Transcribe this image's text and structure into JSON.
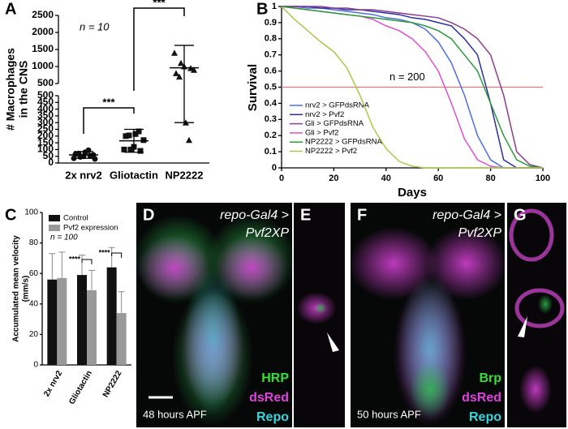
{
  "chart_data": [
    {
      "type": "dotplot",
      "panel": "A",
      "ylabel": [
        "# Macrophages",
        "in the CNS"
      ],
      "annotation": "n = 10",
      "categories": [
        "2x nrv2",
        "Gliotactin",
        "NP2222"
      ],
      "markers": [
        "circle",
        "square",
        "triangle"
      ],
      "color": "#111111",
      "groups": [
        [
          35,
          45,
          50,
          55,
          60,
          65,
          70,
          80,
          95,
          30
        ],
        [
          100,
          100,
          120,
          90,
          170,
          200,
          205,
          215,
          235
        ],
        [
          1400,
          1100,
          1000,
          950,
          900,
          800,
          700,
          300,
          170
        ]
      ],
      "means": [
        60,
        165,
        960
      ],
      "sd": [
        25,
        85,
        660
      ],
      "ylim": [
        0,
        500
      ],
      "yticks": [
        0,
        50,
        100,
        150,
        200,
        250,
        300,
        350,
        400,
        450,
        500
      ],
      "ylim_upper": [
        500,
        2500
      ],
      "yticks_upper": [
        500,
        1000,
        1500,
        2000,
        2500
      ],
      "significance": [
        "***",
        "***"
      ]
    },
    {
      "type": "line",
      "panel": "B",
      "xlabel": "Days",
      "ylabel": "Survival",
      "annotation": "n = 200",
      "x": [
        0,
        5,
        10,
        15,
        20,
        25,
        30,
        35,
        40,
        45,
        50,
        55,
        60,
        65,
        70,
        75,
        80,
        85,
        90,
        95,
        100
      ],
      "series": [
        {
          "name": "nrv2 > GFPdsRNA",
          "color": "#4a6fe0",
          "values": [
            1,
            1,
            0.99,
            0.99,
            0.98,
            0.97,
            0.96,
            0.95,
            0.93,
            0.92,
            0.9,
            0.86,
            0.78,
            0.65,
            0.45,
            0.2,
            0.05,
            0,
            0,
            0,
            0
          ]
        },
        {
          "name": "nrv2 > Pvf2",
          "color": "#2b2e9e",
          "values": [
            1,
            1,
            1,
            0.99,
            0.99,
            0.98,
            0.98,
            0.97,
            0.96,
            0.95,
            0.93,
            0.92,
            0.9,
            0.88,
            0.8,
            0.7,
            0.4,
            0.05,
            0,
            0,
            0
          ]
        },
        {
          "name": "Gli > GFPdsRNA",
          "color": "#8e3a8e",
          "values": [
            1,
            1,
            1,
            1,
            0.99,
            0.99,
            0.98,
            0.98,
            0.97,
            0.96,
            0.95,
            0.94,
            0.93,
            0.9,
            0.86,
            0.8,
            0.7,
            0.45,
            0.1,
            0.02,
            0
          ]
        },
        {
          "name": "Gli > Pvf2",
          "color": "#e04fd0",
          "values": [
            1,
            0.99,
            0.98,
            0.97,
            0.96,
            0.95,
            0.94,
            0.92,
            0.88,
            0.85,
            0.8,
            0.72,
            0.6,
            0.4,
            0.18,
            0.05,
            0.01,
            0,
            0,
            0,
            0
          ]
        },
        {
          "name": "NP2222 > GFPdsRNA",
          "color": "#2a9a3a",
          "values": [
            1,
            0.99,
            0.98,
            0.97,
            0.96,
            0.95,
            0.94,
            0.93,
            0.92,
            0.91,
            0.9,
            0.88,
            0.85,
            0.8,
            0.7,
            0.6,
            0.4,
            0.2,
            0.05,
            0.01,
            0
          ]
        },
        {
          "name": "NP2222 > Pvf2",
          "color": "#a9c94a",
          "values": [
            1,
            0.92,
            0.85,
            0.78,
            0.72,
            0.62,
            0.45,
            0.25,
            0.12,
            0.04,
            0.01,
            0,
            0,
            0,
            0,
            0,
            0,
            0,
            0,
            0,
            0
          ]
        }
      ],
      "hline": 0.5,
      "hline_color": "#e07a7a",
      "xlim": [
        0,
        100
      ],
      "xticks": [
        0,
        20,
        40,
        60,
        80,
        100
      ],
      "ylim": [
        0,
        1
      ],
      "yticks": [
        0,
        0.1,
        0.2,
        0.3,
        0.4,
        0.5,
        0.6,
        0.7,
        0.8,
        0.9,
        1
      ]
    },
    {
      "type": "bar",
      "panel": "C",
      "ylabel": [
        "Accumulated mean velocity",
        "(mm/s)"
      ],
      "annotation": "n = 100",
      "categories": [
        "2x nrv2",
        "Gliotactin",
        "NP2222"
      ],
      "series": [
        {
          "name": "Control",
          "color": "#111111",
          "values": [
            56,
            59,
            64
          ],
          "errors": [
            17,
            13,
            13
          ]
        },
        {
          "name": "Pvf2 expression",
          "color": "#999999",
          "values": [
            57,
            49,
            34
          ],
          "errors": [
            17,
            13,
            14
          ]
        }
      ],
      "ylim": [
        0,
        100
      ],
      "yticks": [
        0,
        20,
        40,
        60,
        80,
        100
      ],
      "significance": [
        "****",
        "****"
      ]
    }
  ],
  "images": [
    {
      "panel": "D",
      "title": [
        "repo-Gal4 >",
        "Pvf2XP"
      ],
      "stains": [
        {
          "name": "HRP",
          "color": "#33e033"
        },
        {
          "name": "dsRed",
          "color": "#e040e0"
        },
        {
          "name": "Repo",
          "color": "#30d8e0"
        }
      ],
      "stage": "48 hours APF"
    },
    {
      "panel": "E"
    },
    {
      "panel": "F",
      "title": [
        "repo-Gal4 >",
        "Pvf2XP"
      ],
      "stains": [
        {
          "name": "Brp",
          "color": "#33e033"
        },
        {
          "name": "dsRed",
          "color": "#e040e0"
        },
        {
          "name": "Repo",
          "color": "#30d8e0"
        }
      ],
      "stage": "50 hours APF"
    },
    {
      "panel": "G"
    }
  ]
}
